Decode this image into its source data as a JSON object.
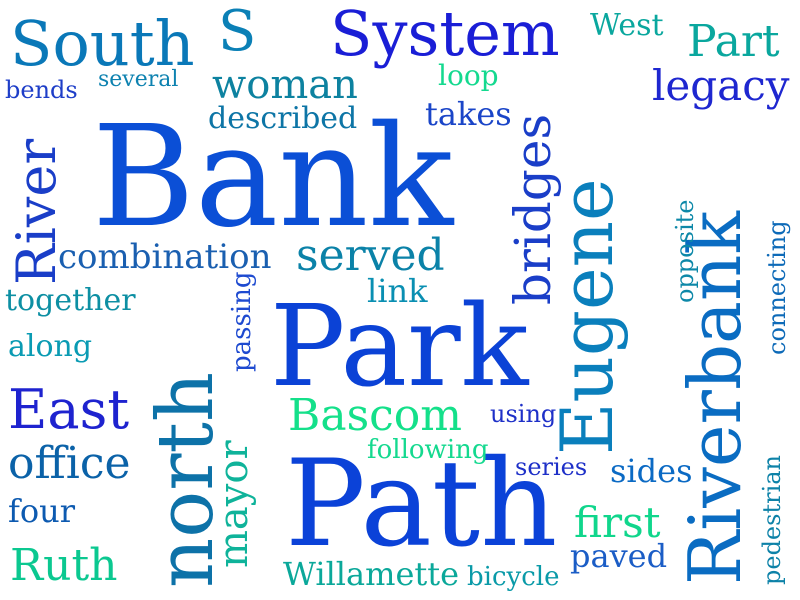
{
  "words": [
    {
      "text": "Bank",
      "color": "#0b4fd6",
      "rotated": false
    },
    {
      "text": "Path",
      "color": "#0b42d8",
      "rotated": false
    },
    {
      "text": "Park",
      "color": "#0b42d6",
      "rotated": false
    },
    {
      "text": "Riverbank",
      "color": "#0a6cc2",
      "rotated": true
    },
    {
      "text": "Eugene",
      "color": "#0a7fbc",
      "rotated": true
    },
    {
      "text": "north",
      "color": "#0d72a8",
      "rotated": true
    },
    {
      "text": "System",
      "color": "#1a1ed6",
      "rotated": false
    },
    {
      "text": "South",
      "color": "#0a78b8",
      "rotated": false
    },
    {
      "text": "River",
      "color": "#1a3ec8",
      "rotated": true
    },
    {
      "text": "bridges",
      "color": "#1a3ec8",
      "rotated": true
    },
    {
      "text": "East",
      "color": "#1e23cf",
      "rotated": false
    },
    {
      "text": "office",
      "color": "#0b62a8",
      "rotated": false
    },
    {
      "text": "woman",
      "color": "#0d82a0",
      "rotated": false
    },
    {
      "text": "served",
      "color": "#0b82a8",
      "rotated": false
    },
    {
      "text": "combination",
      "color": "#1a5fb0",
      "rotated": false
    },
    {
      "text": "Bascom",
      "color": "#14e08a",
      "rotated": false
    },
    {
      "text": "mayor",
      "color": "#0fb39a",
      "rotated": true
    },
    {
      "text": "Willamette",
      "color": "#0ba89a",
      "rotated": false
    },
    {
      "text": "Ruth",
      "color": "#0bc890",
      "rotated": false
    },
    {
      "text": "first",
      "color": "#10d68c",
      "rotated": false
    },
    {
      "text": "legacy",
      "color": "#1e27d0",
      "rotated": false
    },
    {
      "text": "Part",
      "color": "#0aa79e",
      "rotated": false
    },
    {
      "text": "West",
      "color": "#0aa79e",
      "rotated": false
    },
    {
      "text": "S",
      "color": "#0b80b6",
      "rotated": false
    },
    {
      "text": "described",
      "color": "#0d75a6",
      "rotated": false
    },
    {
      "text": "takes",
      "color": "#1a45c8",
      "rotated": false
    },
    {
      "text": "together",
      "color": "#0d8fa3",
      "rotated": false
    },
    {
      "text": "along",
      "color": "#0a9bb3",
      "rotated": false
    },
    {
      "text": "four",
      "color": "#0d5ab0",
      "rotated": false
    },
    {
      "text": "sides",
      "color": "#0b6ac4",
      "rotated": false
    },
    {
      "text": "paved",
      "color": "#1b5dc6",
      "rotated": false
    },
    {
      "text": "link",
      "color": "#0a8fb2",
      "rotated": false
    },
    {
      "text": "loop",
      "color": "#14d98f",
      "rotated": false
    },
    {
      "text": "bends",
      "color": "#1e3ec8",
      "rotated": false
    },
    {
      "text": "several",
      "color": "#0d82b0",
      "rotated": false
    },
    {
      "text": "following",
      "color": "#14d98f",
      "rotated": false
    },
    {
      "text": "using",
      "color": "#1e30c8",
      "rotated": false
    },
    {
      "text": "series",
      "color": "#1e30c8",
      "rotated": false
    },
    {
      "text": "bicycle",
      "color": "#0a9aa8",
      "rotated": false
    },
    {
      "text": "passing",
      "color": "#1e4ad0",
      "rotated": true
    },
    {
      "text": "opposite",
      "color": "#0d88a8",
      "rotated": true
    },
    {
      "text": "connecting",
      "color": "#0d6ab8",
      "rotated": true
    },
    {
      "text": "pedestrian",
      "color": "#0d82a8",
      "rotated": true
    }
  ]
}
